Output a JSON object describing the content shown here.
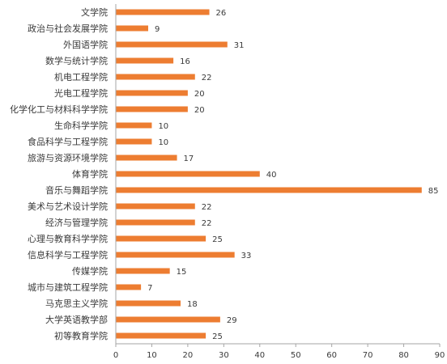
{
  "chart_data": {
    "type": "bar",
    "orientation": "horizontal",
    "categories": [
      "文学院",
      "政治与社会发展学院",
      "外国语学院",
      "数学与统计学院",
      "机电工程学院",
      "光电工程学院",
      "化学化工与材料科学学院",
      "生命科学学院",
      "食品科学与工程学院",
      "旅游与资源环境学院",
      "体育学院",
      "音乐与舞蹈学院",
      "美术与艺术设计学院",
      "经济与管理学院",
      "心理与教育科学学院",
      "信息科学与工程学院",
      "传媒学院",
      "城市与建筑工程学院",
      "马克思主义学院",
      "大学英语教学部",
      "初等教育学院"
    ],
    "values": [
      26,
      9,
      31,
      16,
      22,
      20,
      20,
      10,
      10,
      17,
      40,
      85,
      22,
      22,
      25,
      33,
      15,
      7,
      18,
      29,
      25
    ],
    "xlim": [
      0,
      90
    ],
    "xticks": [
      0,
      10,
      20,
      30,
      40,
      50,
      60,
      70,
      80,
      90
    ],
    "bar_color": "#ED7D31",
    "grid": false,
    "data_labels": true
  }
}
